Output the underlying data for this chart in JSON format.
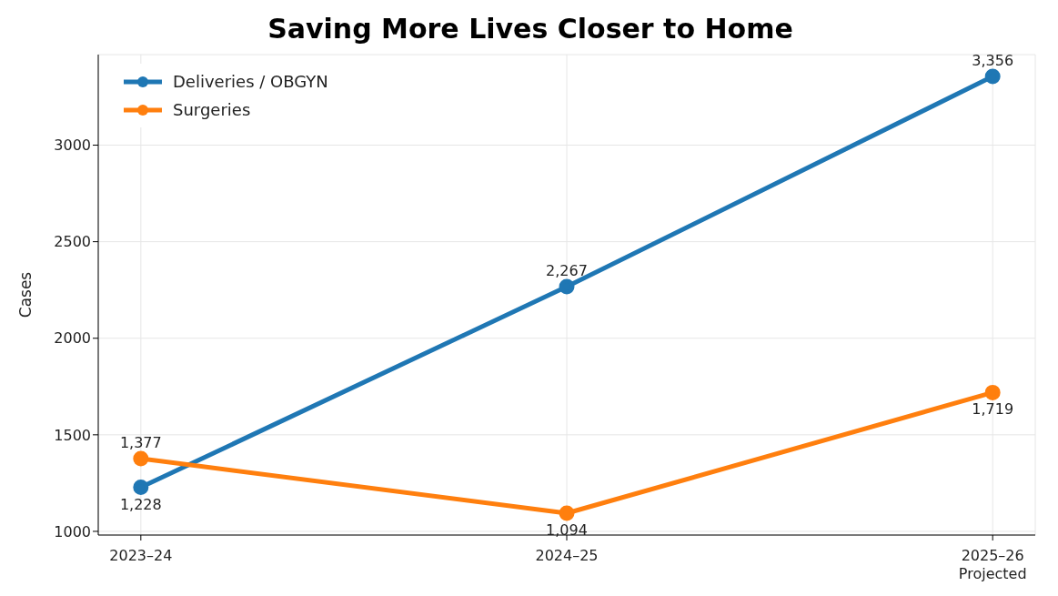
{
  "chart_data": {
    "type": "line",
    "title": "Saving More Lives Closer to Home",
    "ylabel": "Cases",
    "categories": [
      "2023–24",
      "2024–25",
      "2025–26\nProjected"
    ],
    "series": [
      {
        "name": "Deliveries / OBGYN",
        "color": "#1f77b4",
        "values": [
          1228,
          2267,
          3356
        ],
        "value_labels": [
          "1,228",
          "2,267",
          "3,356"
        ]
      },
      {
        "name": "Surgeries",
        "color": "#ff7f0e",
        "values": [
          1377,
          1094,
          1719
        ],
        "value_labels": [
          "1,377",
          "1,094",
          "1,719"
        ]
      }
    ],
    "ylim": [
      981,
      3469
    ],
    "yticks": [
      1000,
      1500,
      2000,
      2500,
      3000
    ],
    "grid": true,
    "legend": "top left",
    "marker": "circle",
    "line_style": "solid"
  }
}
